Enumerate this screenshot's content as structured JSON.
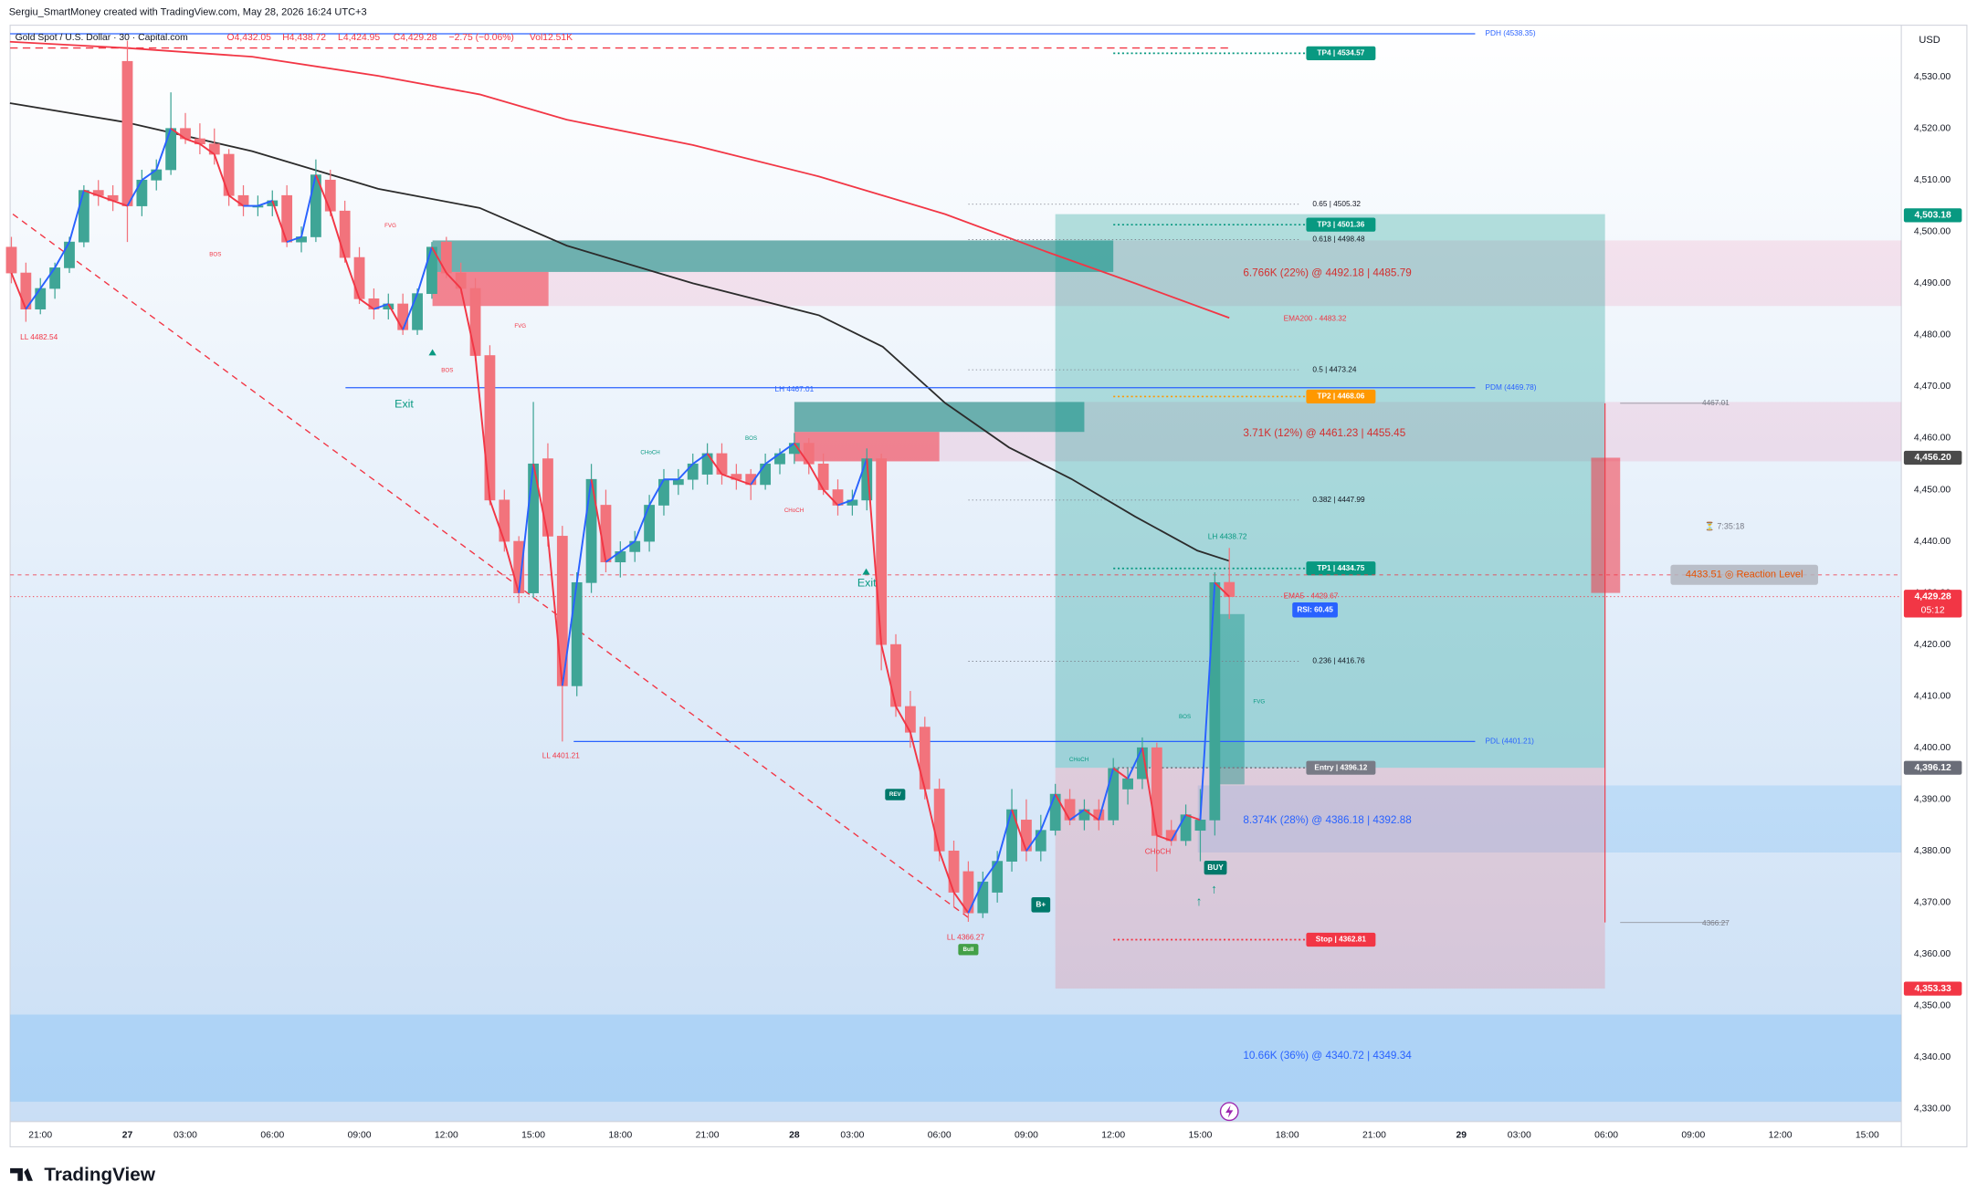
{
  "header": {
    "attribution": "Sergiu_SmartMoney created with TradingView.com, May 28, 2026 16:24 UTC+3",
    "symbol": "Gold Spot / U.S. Dollar · 30 · Capital.com",
    "ohlc": [
      "O4,432.05",
      "H4,438.72",
      "L4,424.95",
      "C4,429.28"
    ],
    "change": "−2.75 (−0.06%)",
    "volume": "Vol12.51K",
    "currency": "USD"
  },
  "footer": {
    "logo": "TradingView"
  },
  "chart_data": {
    "type": "candlestick",
    "colors": {
      "up": "#3fa596",
      "down": "#f2737c",
      "rise_line": "#2962ff",
      "fall_line": "#f23645"
    },
    "xlim": [
      -2.087,
      128.348
    ],
    "ylim": [
      4327.56,
      4540.01
    ],
    "xticks": [
      {
        "value": 0,
        "label": "21:00"
      },
      {
        "value": 6,
        "label": "27"
      },
      {
        "value": 10,
        "label": "03:00"
      },
      {
        "value": 16,
        "label": "06:00"
      },
      {
        "value": 22,
        "label": "09:00"
      },
      {
        "value": 28,
        "label": "12:00"
      },
      {
        "value": 34,
        "label": "15:00"
      },
      {
        "value": 40,
        "label": "18:00"
      },
      {
        "value": 46,
        "label": "21:00"
      },
      {
        "value": 52,
        "label": "28"
      },
      {
        "value": 56,
        "label": "03:00"
      },
      {
        "value": 62,
        "label": "06:00"
      },
      {
        "value": 68,
        "label": "09:00"
      },
      {
        "value": 74,
        "label": "12:00"
      },
      {
        "value": 80,
        "label": "15:00"
      },
      {
        "value": 86,
        "label": "18:00"
      },
      {
        "value": 92,
        "label": "21:00"
      },
      {
        "value": 98,
        "label": "29"
      },
      {
        "value": 102,
        "label": "03:00"
      },
      {
        "value": 108,
        "label": "06:00"
      },
      {
        "value": 114,
        "label": "09:00"
      },
      {
        "value": 120,
        "label": "12:00"
      },
      {
        "value": 126,
        "label": "15:00"
      }
    ],
    "yticks": [
      {
        "value": 4330,
        "label": "4,330.00"
      },
      {
        "value": 4340,
        "label": "4,340.00"
      },
      {
        "value": 4350,
        "label": "4,350.00"
      },
      {
        "value": 4360,
        "label": "4,360.00"
      },
      {
        "value": 4370,
        "label": "4,370.00"
      },
      {
        "value": 4380,
        "label": "4,380.00"
      },
      {
        "value": 4390,
        "label": "4,390.00"
      },
      {
        "value": 4400,
        "label": "4,400.00"
      },
      {
        "value": 4410,
        "label": "4,410.00"
      },
      {
        "value": 4420,
        "label": "4,420.00"
      },
      {
        "value": 4430,
        "label": "4,430.00"
      },
      {
        "value": 4440,
        "label": "4,440.00"
      },
      {
        "value": 4450,
        "label": "4,450.00"
      },
      {
        "value": 4460,
        "label": "4,460.00"
      },
      {
        "value": 4470,
        "label": "4,470.00"
      },
      {
        "value": 4480,
        "label": "4,480.00"
      },
      {
        "value": 4490,
        "label": "4,490.00"
      },
      {
        "value": 4500,
        "label": "4,500.00"
      },
      {
        "value": 4510,
        "label": "4,510.00"
      },
      {
        "value": 4520,
        "label": "4,520.00"
      },
      {
        "value": 4530,
        "label": "4,530.00"
      }
    ],
    "x": [
      -2,
      -1,
      0,
      1,
      2,
      3,
      4,
      5,
      6,
      7,
      8,
      9,
      10,
      11,
      12,
      13,
      14,
      15,
      16,
      17,
      18,
      19,
      20,
      21,
      22,
      23,
      24,
      25,
      26,
      27,
      28,
      29,
      30,
      31,
      32,
      33,
      34,
      35,
      36,
      37,
      38,
      39,
      40,
      41,
      42,
      43,
      44,
      45,
      46,
      47,
      48,
      49,
      50,
      51,
      52,
      53,
      54,
      55,
      56,
      57,
      58,
      59,
      60,
      61,
      62,
      63,
      64,
      65,
      66,
      67,
      68,
      69,
      70,
      71,
      72,
      73,
      74,
      75,
      76,
      77,
      78,
      79,
      80,
      81,
      82
    ],
    "open": [
      4497,
      4492,
      4485,
      4489,
      4493,
      4498,
      4508,
      4507,
      4533,
      4505,
      4510,
      4512,
      4520,
      4518,
      4517,
      4515,
      4507,
      4505,
      4505,
      4507,
      4498,
      4499,
      4510,
      4504,
      4495,
      4487,
      4485,
      4486,
      4481,
      4488,
      4498,
      4492,
      4489,
      4476,
      4448,
      4440,
      4430,
      4456,
      4441,
      4412,
      4432,
      4447,
      4436,
      4438,
      4440,
      4447,
      4451,
      4452,
      4453,
      4457,
      4453,
      4453,
      4451,
      4455,
      4457,
      4459,
      4455,
      4450,
      4447,
      4448,
      4456,
      4420,
      4408,
      4404,
      4392,
      4380,
      4376,
      4368,
      4372,
      4378,
      4386,
      4380,
      4384,
      4390,
      4386,
      4388,
      4386,
      4392,
      4394,
      4400,
      4384,
      4382,
      4384,
      4386,
      4432.05
    ],
    "high": [
      4499,
      4494,
      4491,
      4494,
      4499,
      4509,
      4510,
      4509,
      4537,
      4512,
      4514,
      4527,
      4523,
      4521,
      4520,
      4516,
      4509,
      4507,
      4508,
      4509,
      4501,
      4514,
      4512,
      4506,
      4497,
      4489,
      4488,
      4488,
      4489,
      4498,
      4499,
      4494,
      4491,
      4478,
      4450,
      4441,
      4467,
      4459,
      4443,
      4434,
      4455,
      4450,
      4440,
      4442,
      4449,
      4454,
      4454,
      4457,
      4459,
      4459,
      4455,
      4454,
      4457,
      4458,
      4461,
      4460,
      4457,
      4452,
      4450,
      4458,
      4457,
      4422,
      4411,
      4406,
      4394,
      4382,
      4378,
      4376,
      4380,
      4392,
      4390,
      4387,
      4393,
      4392,
      4390,
      4390,
      4398,
      4396,
      4402,
      4401,
      4386,
      4389,
      4392,
      4434,
      4438.72
    ],
    "low": [
      4490,
      4482.54,
      4484,
      4487,
      4492,
      4497,
      4505,
      4504,
      4498,
      4503,
      4508,
      4511,
      4517,
      4515,
      4513,
      4505,
      4503,
      4503,
      4503,
      4497,
      4496,
      4498,
      4503,
      4494,
      4486,
      4483,
      4483,
      4480,
      4480,
      4487,
      4491,
      4488,
      4475,
      4447,
      4438,
      4428,
      4429,
      4439,
      4401.21,
      4410,
      4430,
      4434,
      4433,
      4436,
      4438,
      4445,
      4449,
      4450,
      4451,
      4451,
      4450,
      4448,
      4450,
      4453,
      4455,
      4453,
      4449,
      4445,
      4445,
      4446,
      4415,
      4406,
      4400,
      4390,
      4378,
      4369,
      4366.27,
      4367,
      4370,
      4376,
      4378,
      4378,
      4383,
      4385,
      4384,
      4384,
      4385,
      4389,
      4392,
      4376,
      4381,
      4381,
      4378,
      4383,
      4424.95
    ],
    "close": [
      4492,
      4485,
      4489,
      4493,
      4498,
      4508,
      4507,
      4506,
      4505,
      4510,
      4512,
      4520,
      4518,
      4517,
      4515,
      4507,
      4505,
      4505,
      4506,
      4498,
      4499,
      4511,
      4504,
      4495,
      4487,
      4485,
      4486,
      4481,
      4488,
      4497,
      4492,
      4489,
      4476,
      4448,
      4440,
      4430,
      4455,
      4441,
      4412,
      4432,
      4452,
      4436,
      4438,
      4440,
      4447,
      4452,
      4452,
      4455,
      4457,
      4453,
      4452,
      4451,
      4455,
      4457,
      4459,
      4455,
      4450,
      4447,
      4448,
      4456,
      4420,
      4408,
      4403,
      4392,
      4380,
      4372,
      4368,
      4374,
      4378,
      4388,
      4380,
      4384,
      4391,
      4386,
      4388,
      4386,
      4396,
      4394,
      4400,
      4383,
      4382,
      4387,
      4386,
      4432,
      4429.28
    ],
    "lines": [
      {
        "color": "#f23645",
        "x": [
          -2.1,
          5.9,
          14.6,
          23.3,
          30.3,
          36.3,
          45,
          53.7,
          62.4,
          69.4,
          75.5,
          82
        ],
        "values": [
          4536.8,
          4535.6,
          4533.9,
          4530.2,
          4526.6,
          4521.7,
          4516.8,
          4510.7,
          4503.4,
          4496.1,
          4490,
          4483.3
        ]
      },
      {
        "color": "#2b2b2b",
        "x": [
          -2.1,
          5.9,
          14.6,
          23.3,
          30.3,
          36.3,
          45,
          53.7,
          58.1,
          62.4,
          66.8,
          71.1,
          75.5,
          79.8,
          82
        ],
        "values": [
          4524.9,
          4521.2,
          4515.6,
          4508.3,
          4504.6,
          4497.3,
          4490,
          4483.8,
          4477.7,
          4466.8,
          4458.2,
          4452.1,
          4444.8,
          4438.2,
          4436.2
        ]
      }
    ],
    "trend_lines": [
      {
        "color": "#f23645",
        "x": [
          -1.9,
          64
        ],
        "values": [
          4503.4,
          4367.1
        ]
      }
    ],
    "dashed_lines": [
      {
        "color": "#f23645",
        "value": 4535.6
      }
    ],
    "zones": [
      {
        "values": [
          4498.3,
          4485.6
        ],
        "color": "rgba(233,30,99,0.10)"
      },
      {
        "values": [
          4498.3,
          4492.2
        ],
        "color": "rgba(0,137,123,0.55)"
      },
      {
        "values": [
          4492.2,
          4485.6
        ],
        "color": "rgba(242,54,69,0.55)"
      },
      {
        "values": [
          4467,
          4455.5
        ],
        "color": "rgba(233,30,99,0.10)"
      },
      {
        "values": [
          4467,
          4461.2
        ],
        "color": "rgba(0,137,123,0.55)"
      },
      {
        "values": [
          4461.2,
          4455.5
        ],
        "color": "rgba(242,54,69,0.55)"
      },
      {
        "values": [
          4392.7,
          4379.7
        ],
        "color": "rgba(66,165,245,0.18)"
      },
      {
        "values": [
          4348.3,
          4331.4
        ],
        "color": "rgba(66,165,245,0.22)"
      },
      {
        "values": [
          4503.4,
          4396.12
        ],
        "color": "rgba(0,150,136,0.28)"
      },
      {
        "values": [
          4396.12,
          4353.33
        ],
        "color": "rgba(242,54,69,0.16)"
      },
      {
        "values": [
          4425.9,
          4392.9
        ],
        "color": "rgba(0,137,123,0.40)"
      },
      {
        "values": [
          4456.2,
          4430
        ],
        "color": "rgba(242,54,69,0.55)"
      }
    ],
    "levels": [
      {
        "label": "PDH (4538.35)",
        "value": 4538.35,
        "kind": "pd",
        "color": "#2962ff"
      },
      {
        "label": "PDM (4469.78)",
        "value": 4469.78,
        "kind": "pd",
        "color": "#2962ff"
      },
      {
        "label": "PDL (4401.21)",
        "value": 4401.21,
        "kind": "pd",
        "color": "#2962ff"
      },
      {
        "label": "0.65 | 4505.32",
        "value": 4505.32,
        "kind": "fib",
        "color": "#787b86"
      },
      {
        "label": "0.618 | 4498.48",
        "value": 4498.48,
        "kind": "fib",
        "color": "#787b86"
      },
      {
        "label": "0.5 | 4473.24",
        "value": 4473.24,
        "kind": "fib",
        "color": "#787b86"
      },
      {
        "label": "0.382 | 4447.99",
        "value": 4447.99,
        "kind": "fib",
        "color": "#787b86"
      },
      {
        "label": "0.236 | 4416.76",
        "value": 4416.76,
        "kind": "fib",
        "color": "#787b86"
      },
      {
        "label": "TP4 | 4534.57",
        "value": 4534.57,
        "kind": "target",
        "color": "#089981"
      },
      {
        "label": "TP3 | 4501.36",
        "value": 4501.36,
        "kind": "target",
        "color": "#089981"
      },
      {
        "label": "TP2 | 4468.06",
        "value": 4468.06,
        "kind": "target",
        "color": "#ff9800"
      },
      {
        "label": "TP1 | 4434.75",
        "value": 4434.75,
        "kind": "target",
        "color": "#089981"
      },
      {
        "label": "Entry | 4396.12",
        "value": 4396.12,
        "kind": "target",
        "color": "#787b86"
      },
      {
        "label": "Stop | 4362.81",
        "value": 4362.81,
        "kind": "target",
        "color": "#f23645"
      },
      {
        "label": "4433.51 ◎ Reaction Level",
        "value": 4433.51,
        "kind": "reaction",
        "color": "#f23645"
      }
    ],
    "price_badges": [
      {
        "label": "4,503.18",
        "value": 4503.18,
        "color": "#089981"
      },
      {
        "label": "4,456.20",
        "value": 4456.2,
        "color": "#4a4a4a"
      },
      {
        "label": "4,429.28",
        "value": 4429.28,
        "color": "#f23645",
        "timer": "05:12"
      },
      {
        "label": "4,396.12",
        "value": 4396.12,
        "color": "#6a6d78"
      },
      {
        "label": "4,353.33",
        "value": 4353.33,
        "color": "#f23645"
      }
    ],
    "tags": [
      {
        "text": "RSI: 60.45",
        "color": "#2962ff"
      },
      {
        "text": "REV",
        "color": "#00796b"
      },
      {
        "text": "B+",
        "color": "#00796b"
      },
      {
        "text": "Bull",
        "color": "#43a047"
      },
      {
        "text": "BUY",
        "color": "#00796b"
      }
    ],
    "annotations": [
      {
        "text": "LL 4482.54",
        "color": "#f23645"
      },
      {
        "text": "LL 4401.21",
        "color": "#f23645"
      },
      {
        "text": "LL 4366.27",
        "color": "#f23645"
      },
      {
        "text": "LH 4438.72",
        "color": "#089981"
      },
      {
        "text": "Exit",
        "color": "#089981"
      },
      {
        "text": "Exit",
        "color": "#089981"
      },
      {
        "text": "BOS",
        "color": "#f23645"
      },
      {
        "text": "FVG",
        "color": "#f23645"
      },
      {
        "text": "BOS",
        "color": "#f23645"
      },
      {
        "text": "FVG",
        "color": "#f23645"
      },
      {
        "text": "CHoCH",
        "color": "#089981"
      },
      {
        "text": "BOS",
        "color": "#089981"
      },
      {
        "text": "CHoCH",
        "color": "#f23645"
      },
      {
        "text": "CHoCH",
        "color": "#089981"
      },
      {
        "text": "BOS",
        "color": "#089981"
      },
      {
        "text": "FVG",
        "color": "#089981"
      },
      {
        "text": "CHoCH",
        "color": "#f23645"
      },
      {
        "text": "EMA200 - 4483.32",
        "color": "#f23645"
      },
      {
        "text": "EMA5 - 4429.67",
        "color": "#f23645"
      },
      {
        "text": "6.766K (22%) @ 4492.18 | 4485.79",
        "color": "#d32f2f"
      },
      {
        "text": "3.71K (12%) @ 4461.23 | 4455.45",
        "color": "#d32f2f"
      },
      {
        "text": "8.374K (28%) @ 4386.18 | 4392.88",
        "color": "#2962ff"
      },
      {
        "text": "10.66K (36%) @ 4340.72 | 4349.34",
        "color": "#2962ff"
      },
      {
        "text": "4467.01",
        "color": "#787b86"
      },
      {
        "text": "4366.27",
        "color": "#787b86"
      },
      {
        "text": "⏳ 7:35:18",
        "color": "#787b86"
      },
      {
        "text": "LH 4467.01",
        "color": "#2962ff"
      }
    ]
  }
}
